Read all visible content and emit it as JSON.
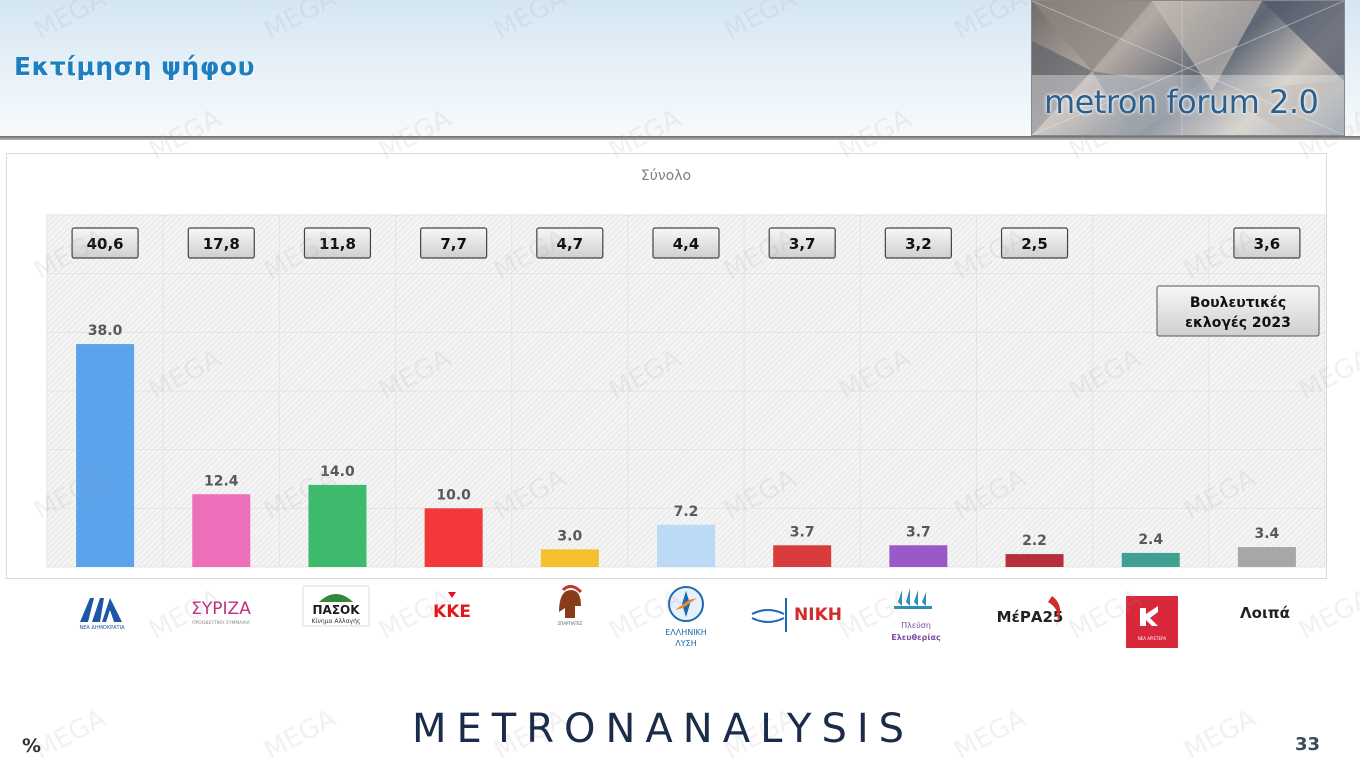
{
  "header": {
    "title": "Εκτίμηση ψήφου",
    "banner_text": "metron forum 2.0"
  },
  "chart_data": {
    "type": "bar",
    "title": "Σύνολο",
    "categories": [
      "ΝΔ",
      "ΣΥΡΙΖΑ",
      "ΠΑΣΟΚ",
      "ΚΚΕ",
      "Σπαρτιάτες",
      "Ελληνική Λύση",
      "ΝΙΚΗ",
      "Πλεύση Ελευθερίας",
      "ΜέΡΑ25",
      "Νέα Αριστερά",
      "Λοιπά"
    ],
    "values": [
      38.0,
      12.4,
      14.0,
      10.0,
      3.0,
      7.2,
      3.7,
      3.7,
      2.2,
      2.4,
      3.4
    ],
    "value_labels": [
      "38.0",
      "12.4",
      "14.0",
      "10.0",
      "3.0",
      "7.2",
      "3.7",
      "3.7",
      "2.2",
      "2.4",
      "3.4"
    ],
    "colors": [
      "#5ba3ea",
      "#ee6fb9",
      "#3dba6c",
      "#f2383a",
      "#f5c02d",
      "#bbdaf6",
      "#d93c3c",
      "#9b59c8",
      "#b5303a",
      "#3fa191",
      "#a7a7a7"
    ],
    "ylim": [
      0,
      60
    ],
    "grid": true,
    "legend": "none",
    "election_2023": {
      "label_line1": "Βουλευτικές",
      "label_line2": "εκλογές 2023",
      "values": [
        "40,6",
        "17,8",
        "11,8",
        "7,7",
        "4,7",
        "4,4",
        "3,7",
        "3,2",
        "2,5",
        "",
        "3,6"
      ]
    }
  },
  "logos": [
    {
      "icon": "nd-logo",
      "text": "ΝΔ",
      "sub": "ΝΕΑ ΔΗΜΟΚΡΑΤΙΑ",
      "color": "#1d56a6"
    },
    {
      "icon": "syriza-logo",
      "text": "ΣΥΡΙΖΑ",
      "sub": "ΠΡΟΟΔΕΥΤΙΚΗ ΣΥΜΜΑΧΙΑ",
      "color": "#c0307a"
    },
    {
      "icon": "pasok-logo",
      "text": "ΠΑΣΟΚ",
      "sub": "Κίνημα Αλλαγής",
      "color": "#2f8a3c"
    },
    {
      "icon": "kke-logo",
      "text": "ΚΚΕ",
      "color": "#e2171d"
    },
    {
      "icon": "spartiates-logo",
      "text": "ΣΠΑΡΤΙΑΤΕΣ",
      "color": "#8a3b1a"
    },
    {
      "icon": "elliniki-lysi-logo",
      "text": "ΕΛΛΗΝΙΚΗ",
      "sub": "ΛΥΣΗ",
      "color": "#1f69b0"
    },
    {
      "icon": "niki-logo",
      "text": "ΝΙΚΗ",
      "color": "#d22b2b"
    },
    {
      "icon": "plefsi-logo",
      "text": "Πλεύση",
      "sub": "Ελευθερίας",
      "color": "#7a4fa0"
    },
    {
      "icon": "mera25-logo",
      "text": "ΜέΡΑ25",
      "color": "#222222"
    },
    {
      "icon": "nea-aristera-logo",
      "text": "ΝΕΑ ΑΡΙΣΤΕΡΑ",
      "color": "#d9283c"
    }
  ],
  "others_label": "Λοιπά",
  "footer": {
    "brand": "METRONANALYSIS",
    "unit": "%",
    "page_number": "33"
  },
  "watermark_text": "MEGA"
}
